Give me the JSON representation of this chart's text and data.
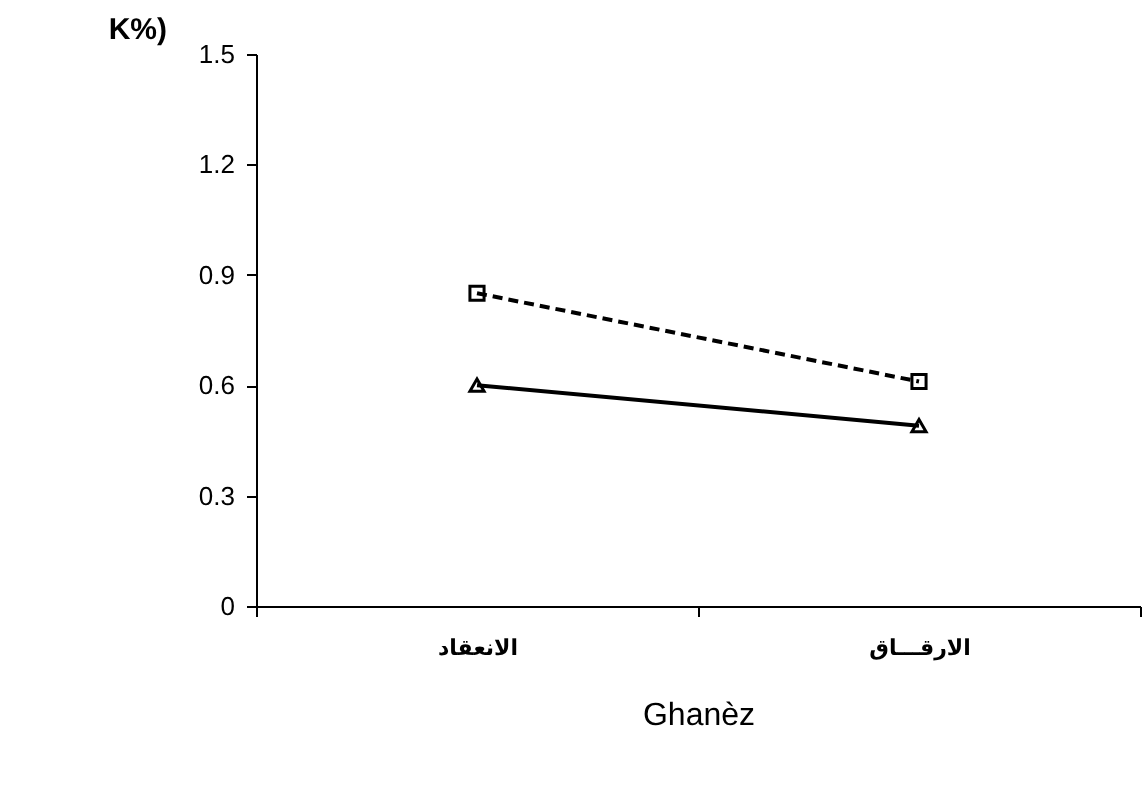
{
  "chart_data": {
    "type": "line",
    "xlabel": "Ghanèz",
    "ylabel": "K%)",
    "categories": [
      "الانعقاد",
      "الارقـــاق"
    ],
    "series": [
      {
        "color": "#000000",
        "values": [
          0.85,
          0.61
        ],
        "marker": "square",
        "line_style": "dashed"
      },
      {
        "color": "#000000",
        "values": [
          0.6,
          0.49
        ],
        "marker": "triangle",
        "line_style": "solid"
      }
    ],
    "ylim": [
      0,
      1.5
    ],
    "yticks": [
      0,
      0.3,
      0.6,
      0.9,
      1.2,
      1.5
    ],
    "grid": false
  }
}
